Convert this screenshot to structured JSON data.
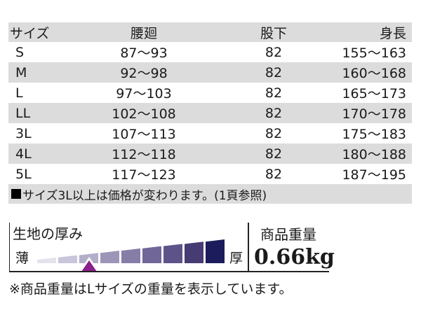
{
  "size_table": {
    "headers": [
      "サイズ",
      "腰廻",
      "股下",
      "身長"
    ],
    "rows": [
      {
        "size": "S",
        "waist": "87〜93",
        "inseam": "82",
        "height": "155〜163"
      },
      {
        "size": "M",
        "waist": "92〜98",
        "inseam": "82",
        "height": "160〜168"
      },
      {
        "size": "L",
        "waist": "97〜103",
        "inseam": "82",
        "height": "165〜173"
      },
      {
        "size": "LL",
        "waist": "102〜108",
        "inseam": "82",
        "height": "170〜178"
      },
      {
        "size": "3L",
        "waist": "107〜113",
        "inseam": "82",
        "height": "175〜183"
      },
      {
        "size": "4L",
        "waist": "112〜118",
        "inseam": "82",
        "height": "180〜188"
      },
      {
        "size": "5L",
        "waist": "117〜123",
        "inseam": "82",
        "height": "187〜195"
      }
    ],
    "note": "サイズ3L以上は価格が変わります。(1頁参照)"
  },
  "fabric_thickness": {
    "title": "生地の厚み",
    "thin_label": "薄",
    "thick_label": "厚",
    "levels": 9,
    "selected_level": 3,
    "colors": [
      "#e4e2ec",
      "#c9c5da",
      "#b3aec9",
      "#9d95b8",
      "#877ea8",
      "#716798",
      "#5e5389",
      "#463b73",
      "#1c1c5c"
    ],
    "marker_color": "#8b1f8c"
  },
  "product_weight": {
    "title": "商品重量",
    "value": "0.66kg"
  },
  "footnote": "※商品重量はLサイズの重量を表示しています。"
}
